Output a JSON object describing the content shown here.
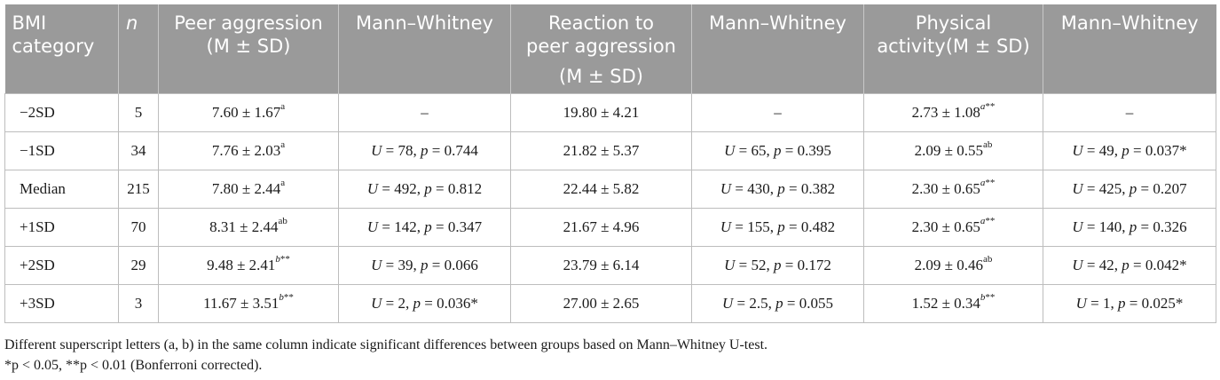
{
  "headers": [
    {
      "line1": "BMI",
      "line2": "category",
      "line3": ""
    },
    {
      "line1": "n",
      "line2": "",
      "line3": ""
    },
    {
      "line1": "Peer aggression",
      "line2": "(M ± SD)",
      "line3": ""
    },
    {
      "line1": "Mann–Whitney",
      "line2": "",
      "line3": ""
    },
    {
      "line1": "Reaction to",
      "line2": "peer aggression",
      "line3": "(M ± SD)"
    },
    {
      "line1": "Mann–Whitney",
      "line2": "",
      "line3": ""
    },
    {
      "line1": "Physical",
      "line2": "activity(M ± SD)",
      "line3": ""
    },
    {
      "line1": "Mann–Whitney",
      "line2": "",
      "line3": ""
    }
  ],
  "rows": [
    {
      "category": "−2SD",
      "n": "5",
      "peer": {
        "val": "7.60 ± 1.67",
        "sup": "a"
      },
      "mw1": {
        "U": "",
        "p": "",
        "sig": "",
        "dash": "–"
      },
      "reaction": "19.80 ± 4.21",
      "mw2": {
        "U": "",
        "p": "",
        "sig": "",
        "dash": "–"
      },
      "phys": {
        "val": "2.73 ± 1.08",
        "sup": "a**"
      },
      "mw3": {
        "U": "",
        "p": "",
        "sig": "",
        "dash": "–"
      }
    },
    {
      "category": "−1SD",
      "n": "34",
      "peer": {
        "val": "7.76 ± 2.03",
        "sup": "a"
      },
      "mw1": {
        "U": "78",
        "p": "0.744",
        "sig": "",
        "dash": ""
      },
      "reaction": "21.82 ± 5.37",
      "mw2": {
        "U": "65",
        "p": "0.395",
        "sig": "",
        "dash": ""
      },
      "phys": {
        "val": "2.09 ± 0.55",
        "sup": "ab"
      },
      "mw3": {
        "U": "49",
        "p": "0.037",
        "sig": "*",
        "dash": ""
      }
    },
    {
      "category": "Median",
      "n": "215",
      "peer": {
        "val": "7.80 ± 2.44",
        "sup": "a"
      },
      "mw1": {
        "U": "492",
        "p": "0.812",
        "sig": "",
        "dash": ""
      },
      "reaction": "22.44 ± 5.82",
      "mw2": {
        "U": "430",
        "p": "0.382",
        "sig": "",
        "dash": ""
      },
      "phys": {
        "val": "2.30 ± 0.65",
        "sup": "a**"
      },
      "mw3": {
        "U": "425",
        "p": "0.207",
        "sig": "",
        "dash": ""
      }
    },
    {
      "category": "+1SD",
      "n": "70",
      "peer": {
        "val": "8.31 ± 2.44",
        "sup": "ab"
      },
      "mw1": {
        "U": "142",
        "p": "0.347",
        "sig": "",
        "dash": ""
      },
      "reaction": "21.67 ± 4.96",
      "mw2": {
        "U": "155",
        "p": "0.482",
        "sig": "",
        "dash": ""
      },
      "phys": {
        "val": "2.30 ± 0.65",
        "sup": "a**"
      },
      "mw3": {
        "U": "140",
        "p": "0.326",
        "sig": "",
        "dash": ""
      }
    },
    {
      "category": "+2SD",
      "n": "29",
      "peer": {
        "val": "9.48 ± 2.41",
        "sup": "b**"
      },
      "mw1": {
        "U": "39",
        "p": "0.066",
        "sig": "",
        "dash": ""
      },
      "reaction": "23.79 ± 6.14",
      "mw2": {
        "U": "52",
        "p": "0.172",
        "sig": "",
        "dash": ""
      },
      "phys": {
        "val": "2.09 ± 0.46",
        "sup": "ab"
      },
      "mw3": {
        "U": "42",
        "p": "0.042",
        "sig": "*",
        "dash": ""
      }
    },
    {
      "category": "+3SD",
      "n": "3",
      "peer": {
        "val": "11.67 ± 3.51",
        "sup": "b**"
      },
      "mw1": {
        "U": "2",
        "p": "0.036",
        "sig": "*",
        "dash": ""
      },
      "reaction": "27.00 ± 2.65",
      "mw2": {
        "U": "2.5",
        "p": "0.055",
        "sig": "",
        "dash": ""
      },
      "phys": {
        "val": "1.52 ± 0.34",
        "sup": "b**"
      },
      "mw3": {
        "U": "1",
        "p": "0.025",
        "sig": "*",
        "dash": ""
      }
    }
  ],
  "footnotes": {
    "line1": "Different superscript letters (a, b) in the same column indicate significant differences between groups based on Mann–Whitney U-test.",
    "line2": "*p < 0.05, **p < 0.01 (Bonferroni corrected)."
  }
}
